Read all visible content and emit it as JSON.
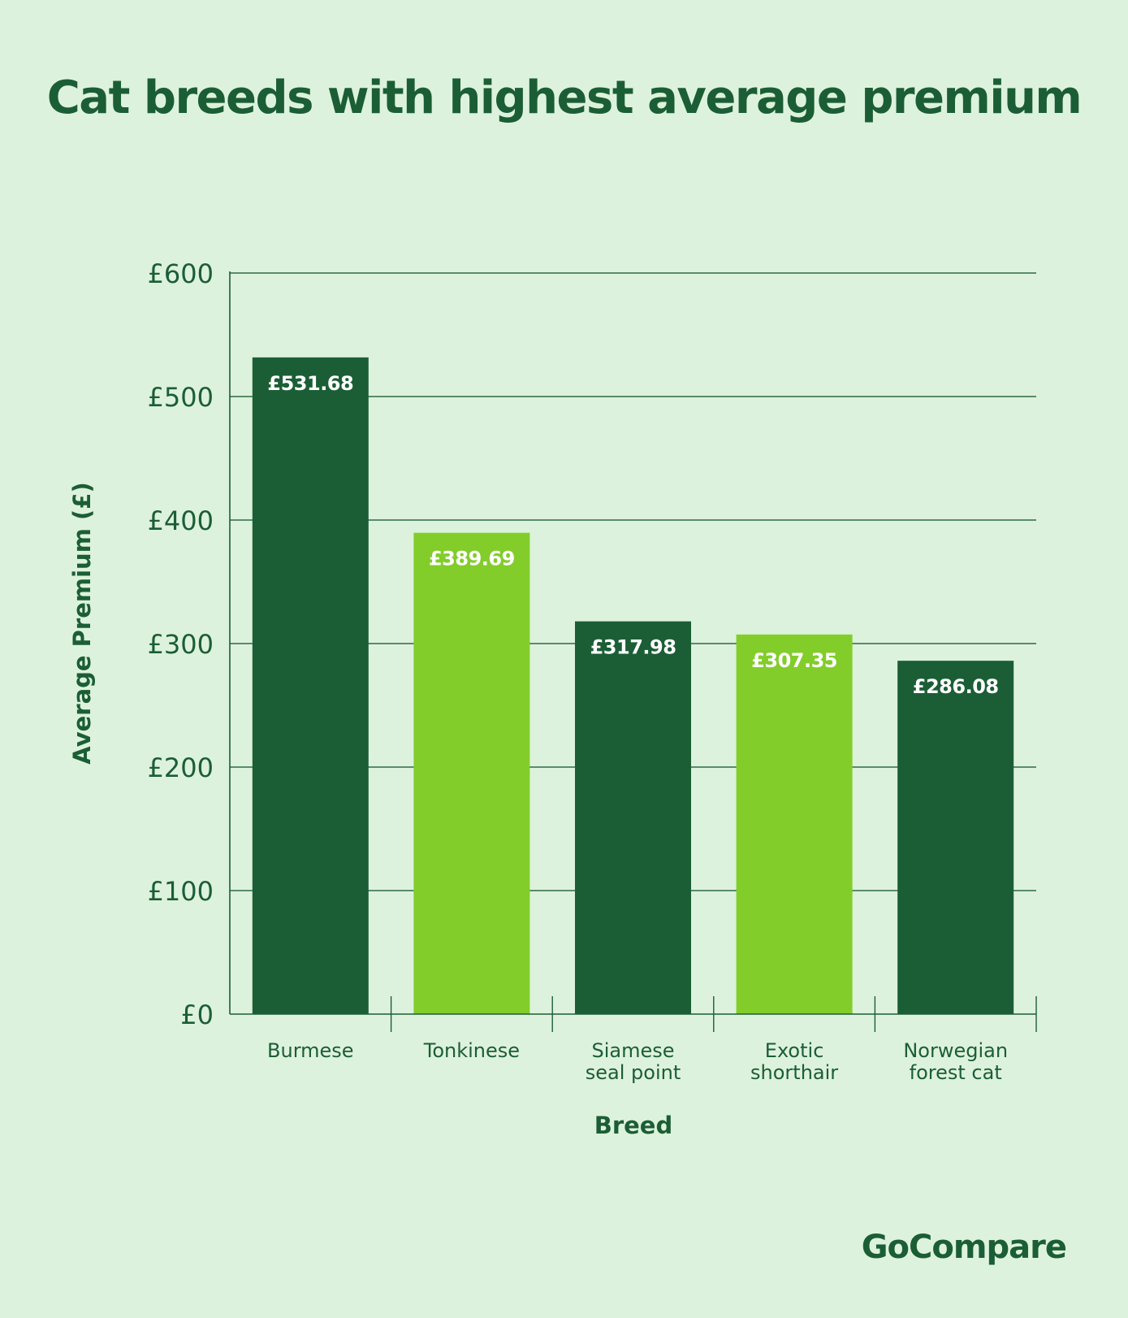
{
  "header": {
    "title": "Cat breeds with highest average premium"
  },
  "brand": {
    "logo_text": "GoCompare"
  },
  "colors": {
    "background": "#ddf2dc",
    "dark_green": "#1b5e35",
    "light_green": "#82cd2a",
    "axis": "#1b5e35",
    "grid": "#2f6a45"
  },
  "chart_data": {
    "type": "bar",
    "title": "Cat breeds with highest average premium",
    "xlabel": "Breed",
    "ylabel": "Average Premium (£)",
    "categories": [
      [
        "Burmese"
      ],
      [
        "Tonkinese"
      ],
      [
        "Siamese",
        "seal point"
      ],
      [
        "Exotic",
        "shorthair"
      ],
      [
        "Norwegian",
        "forest cat"
      ]
    ],
    "values": [
      531.68,
      389.69,
      317.98,
      307.35,
      286.08
    ],
    "data_labels": [
      "£531.68",
      "£389.69",
      "£317.98",
      "£307.35",
      "£286.08"
    ],
    "bar_colors": [
      "#1b5e35",
      "#82cd2a",
      "#1b5e35",
      "#82cd2a",
      "#1b5e35"
    ],
    "y_ticks": [
      0,
      100,
      200,
      300,
      400,
      500,
      600
    ],
    "y_tick_labels": [
      "£0",
      "£100",
      "£200",
      "£300",
      "£400",
      "£500",
      "£600"
    ],
    "ylim": [
      0,
      600
    ],
    "grid": true,
    "legend": "none"
  }
}
